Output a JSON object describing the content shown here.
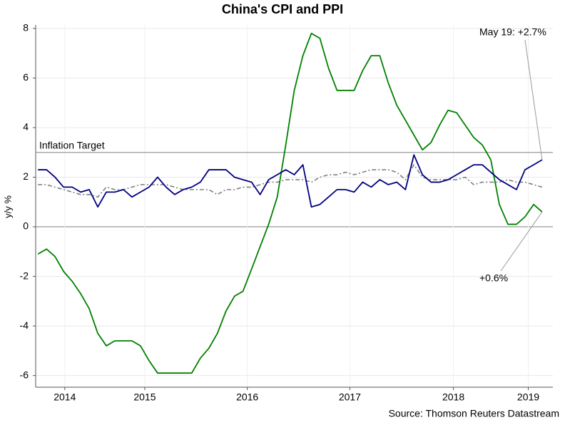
{
  "chart_data": {
    "type": "line",
    "title": "China's CPI and PPI",
    "ylabel": "y/y %",
    "source": "Source: Thomson Reuters Datastream",
    "x": [
      2014.458,
      2014.542,
      2014.625,
      2014.708,
      2014.792,
      2014.875,
      2014.958,
      2015.042,
      2015.125,
      2015.208,
      2015.292,
      2015.375,
      2015.458,
      2015.542,
      2015.625,
      2015.708,
      2015.792,
      2015.875,
      2015.958,
      2016.042,
      2016.125,
      2016.208,
      2016.292,
      2016.375,
      2016.458,
      2016.542,
      2016.625,
      2016.708,
      2016.792,
      2016.875,
      2016.958,
      2017.042,
      2017.125,
      2017.208,
      2017.292,
      2017.375,
      2017.458,
      2017.542,
      2017.625,
      2017.708,
      2017.792,
      2017.875,
      2017.958,
      2018.042,
      2018.125,
      2018.208,
      2018.292,
      2018.375,
      2018.458,
      2018.542,
      2018.625,
      2018.708,
      2018.792,
      2018.875,
      2018.958,
      2019.042,
      2019.125,
      2019.208,
      2019.292,
      2019.375
    ],
    "series": [
      {
        "color": "#808080",
        "dashed": true,
        "values": [
          1.7,
          1.7,
          1.6,
          1.5,
          1.4,
          1.3,
          1.3,
          1.2,
          1.6,
          1.5,
          1.5,
          1.6,
          1.7,
          1.7,
          1.7,
          1.7,
          1.6,
          1.5,
          1.5,
          1.5,
          1.5,
          1.3,
          1.5,
          1.5,
          1.6,
          1.6,
          1.7,
          1.8,
          1.8,
          1.9,
          1.9,
          1.9,
          1.8,
          2.0,
          2.1,
          2.1,
          2.2,
          2.1,
          2.2,
          2.3,
          2.3,
          2.3,
          2.2,
          1.9,
          2.5,
          2.0,
          1.9,
          1.9,
          1.9,
          1.9,
          2.0,
          1.7,
          1.8,
          1.8,
          1.8,
          1.9,
          1.8,
          1.8,
          1.7,
          1.6
        ]
      },
      {
        "color": "#008000",
        "values": [
          -1.1,
          -0.9,
          -1.2,
          -1.8,
          -2.2,
          -2.7,
          -3.3,
          -4.3,
          -4.8,
          -4.6,
          -4.6,
          -4.6,
          -4.8,
          -5.4,
          -5.9,
          -5.9,
          -5.9,
          -5.9,
          -5.9,
          -5.3,
          -4.9,
          -4.3,
          -3.4,
          -2.8,
          -2.6,
          -1.7,
          -0.8,
          0.1,
          1.2,
          3.3,
          5.5,
          6.9,
          7.8,
          7.6,
          6.4,
          5.5,
          5.5,
          5.5,
          6.3,
          6.9,
          6.9,
          5.8,
          4.9,
          4.3,
          3.7,
          3.1,
          3.4,
          4.1,
          4.7,
          4.6,
          4.1,
          3.6,
          3.3,
          2.7,
          0.9,
          0.1,
          0.1,
          0.4,
          0.9,
          0.6
        ]
      },
      {
        "color": "#000080",
        "values": [
          2.3,
          2.3,
          2.0,
          1.6,
          1.6,
          1.4,
          1.5,
          0.8,
          1.4,
          1.4,
          1.5,
          1.2,
          1.4,
          1.6,
          2.0,
          1.6,
          1.3,
          1.5,
          1.6,
          1.8,
          2.3,
          2.3,
          2.3,
          2.0,
          1.9,
          1.8,
          1.3,
          1.9,
          2.1,
          2.3,
          2.1,
          2.5,
          0.8,
          0.9,
          1.2,
          1.5,
          1.5,
          1.4,
          1.8,
          1.6,
          1.9,
          1.7,
          1.8,
          1.5,
          2.9,
          2.1,
          1.8,
          1.8,
          1.9,
          2.1,
          2.3,
          2.5,
          2.5,
          2.2,
          1.9,
          1.7,
          1.5,
          2.3,
          2.5,
          2.7
        ]
      }
    ],
    "xlim": [
      2014.436,
      2019.48
    ],
    "xticks": [
      {
        "value": 2014.72,
        "label": "2014"
      },
      {
        "value": 2015.5,
        "label": "2015"
      },
      {
        "value": 2016.5,
        "label": "2016"
      },
      {
        "value": 2017.5,
        "label": "2017"
      },
      {
        "value": 2018.51,
        "label": "2018"
      },
      {
        "value": 2019.24,
        "label": "2019"
      }
    ],
    "ylim": [
      -6.47,
      8.14
    ],
    "yticks": [
      -6,
      -4,
      -2,
      0,
      2,
      4,
      6,
      8
    ],
    "grid": true,
    "reference_line": {
      "text": "Inflation Target",
      "y": 3
    },
    "annotations": [
      {
        "text": "May 19: +2.7%",
        "series": 2
      },
      {
        "text": "+0.6%",
        "series": 1
      }
    ]
  }
}
